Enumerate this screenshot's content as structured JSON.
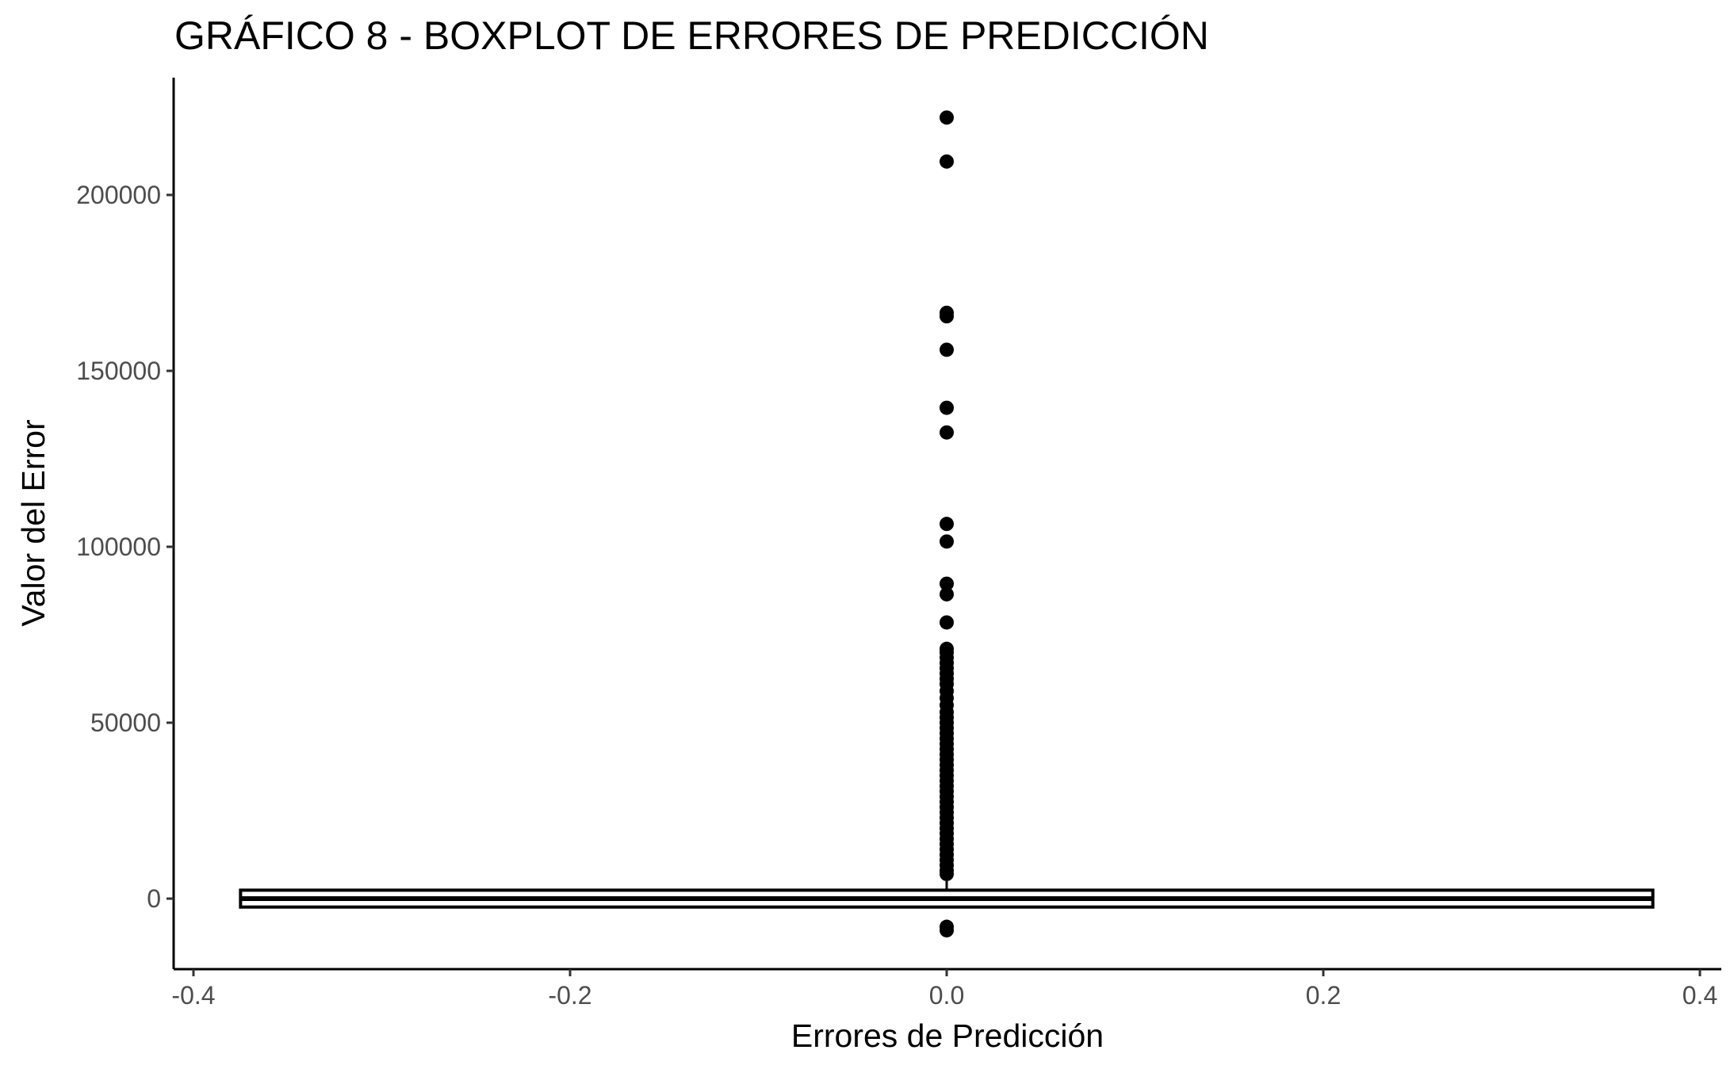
{
  "chart_data": {
    "type": "boxplot",
    "title": "GRÁFICO 8 - BOXPLOT DE ERRORES DE PREDICCIÓN",
    "xlabel": "Errores de Predicción",
    "ylabel": "Valor del Error",
    "xlim": [
      -0.4,
      0.4
    ],
    "ylim": [
      -20000,
      232000
    ],
    "x_ticks": [
      -0.4,
      -0.2,
      0.0,
      0.2,
      0.4
    ],
    "x_tick_labels": [
      "-0.4",
      "-0.2",
      "0.0",
      "0.2",
      "0.4"
    ],
    "y_ticks": [
      0,
      50000,
      100000,
      150000,
      200000
    ],
    "y_tick_labels": [
      "0",
      "50000",
      "100000",
      "150000",
      "200000"
    ],
    "grid": false,
    "legend": "none",
    "box": {
      "x_center": 0.0,
      "x_left": -0.375,
      "x_right": 0.375,
      "q1": -1500,
      "median": 0,
      "q3": 1500,
      "whisker_low": -2500,
      "whisker_high": 5000
    },
    "outliers": [
      222000,
      209500,
      166500,
      165500,
      156000,
      139500,
      132500,
      106500,
      101500,
      89500,
      86500,
      78500,
      71000,
      70000,
      68500,
      67000,
      65500,
      64000,
      62500,
      61000,
      59000,
      57000,
      55000,
      53000,
      51500,
      50000,
      48500,
      47000,
      45500,
      44000,
      42500,
      41000,
      39500,
      38000,
      36500,
      35000,
      33500,
      32000,
      30500,
      29000,
      27500,
      26000,
      24500,
      23000,
      21500,
      20000,
      18500,
      17000,
      15500,
      14000,
      12500,
      11000,
      9500,
      8000,
      7000,
      -8000,
      -9000
    ]
  }
}
